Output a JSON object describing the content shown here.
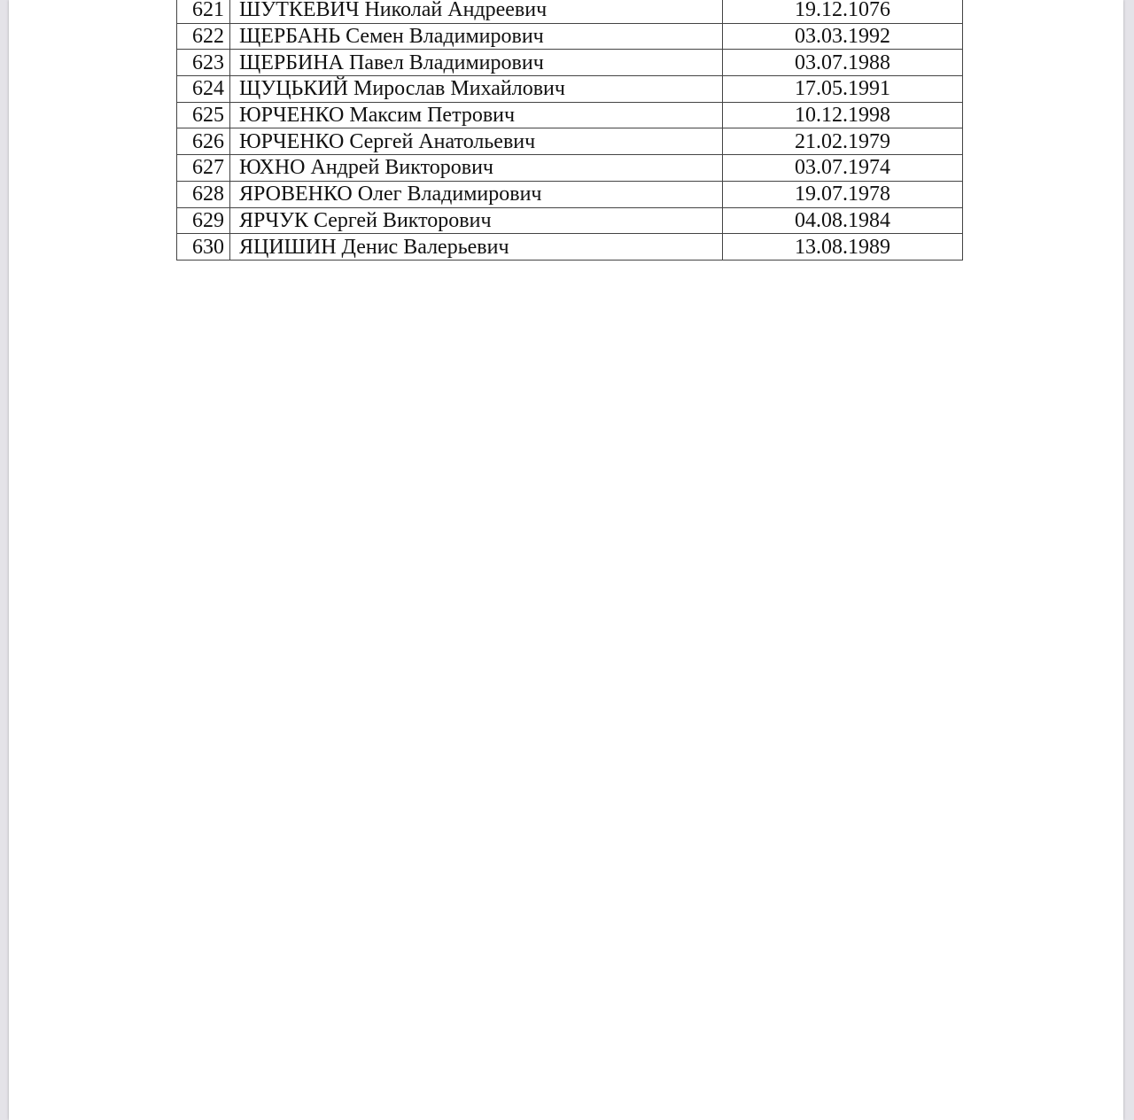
{
  "rows": [
    {
      "num": "621",
      "name": "ШУТКЕВИЧ Николай Андреевич",
      "date": "19.12.1076"
    },
    {
      "num": "622",
      "name": "ЩЕРБАНЬ Семен Владимирович",
      "date": "03.03.1992"
    },
    {
      "num": "623",
      "name": "ЩЕРБИНА Павел Владимирович",
      "date": "03.07.1988"
    },
    {
      "num": "624",
      "name": "ЩУЦЬКИЙ Мирослав Михайлович",
      "date": "17.05.1991"
    },
    {
      "num": "625",
      "name": "ЮРЧЕНКО Максим Петрович",
      "date": "10.12.1998"
    },
    {
      "num": "626",
      "name": "ЮРЧЕНКО Сергей Анатольевич",
      "date": "21.02.1979"
    },
    {
      "num": "627",
      "name": "ЮХНО Андрей Викторович",
      "date": "03.07.1974"
    },
    {
      "num": "628",
      "name": "ЯРОВЕНКО Олег Владимирович",
      "date": "19.07.1978"
    },
    {
      "num": "629",
      "name": "ЯРЧУК Сергей Викторович",
      "date": "04.08.1984"
    },
    {
      "num": "630",
      "name": "ЯЦИШИН Денис Валерьевич",
      "date": "13.08.1989"
    }
  ]
}
